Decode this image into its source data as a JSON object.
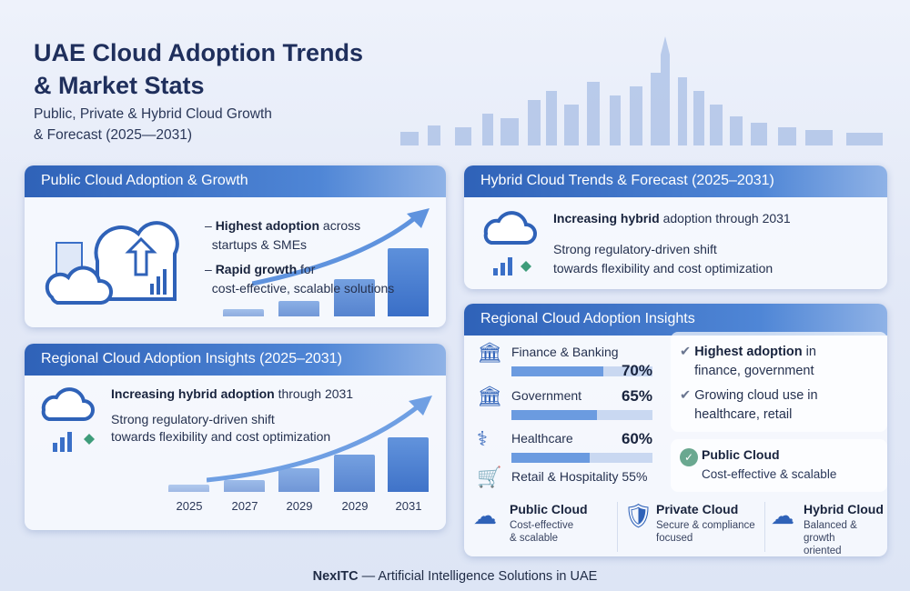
{
  "header": {
    "title_line1": "UAE Cloud Adoption Trends",
    "title_line2": "& Market Stats",
    "subtitle_line1": "Public, Private & Hybrid Cloud Growth",
    "subtitle_line2": "& Forecast (2025—2031)"
  },
  "public_card": {
    "title": "Public Cloud Adoption & Growth",
    "b1_bold": "Highest adoption",
    "b1_rest": " across",
    "b1_line2": "startups & SMEs",
    "b2_bold": "Rapid growth",
    "b2_rest": " for",
    "b2_line2": "cost-effective, scalable solutions",
    "bar_levels": [
      7,
      20,
      53,
      100
    ]
  },
  "hybrid_card": {
    "title": "Hybrid Cloud Trends & Forecast (2025–2031)",
    "l1_bold": "Increasing hybrid",
    "l1_rest": " adoption through 2031",
    "l2": "Strong regulatory-driven shift",
    "l3": "towards flexibility and cost optimization"
  },
  "regional_left": {
    "title": "Regional Cloud Adoption Insights (2025–2031)",
    "l1_bold": "Increasing hybrid adoption",
    "l1_rest": " through 2031",
    "l2": "Strong regulatory-driven shift",
    "l3": "towards flexibility and cost optimization",
    "years": [
      "2025",
      "2027",
      "2029",
      "2029",
      "2031"
    ],
    "bar_levels": [
      13,
      22,
      43,
      68,
      100
    ]
  },
  "regional_right": {
    "title": "Regional Cloud Adoption Insights",
    "sectors": [
      {
        "label": "Finance & Banking",
        "value": "70%",
        "pct": 70,
        "icon": "bank-icon"
      },
      {
        "label": "Government",
        "value": "65%",
        "pct": 65,
        "icon": "bank-icon"
      },
      {
        "label": "Healthcare",
        "value": "60%",
        "pct": 60,
        "icon": "stethoscope-icon"
      },
      {
        "label": "Retail & Hospitality 55%",
        "pct": 55,
        "icon": "cart-icon"
      }
    ],
    "insights": [
      {
        "bold": "Highest adoption",
        "rest": " in",
        "line2": "finance, government"
      },
      {
        "bold": "",
        "rest": "Growing cloud use in",
        "line2": "healthcare, retail"
      }
    ],
    "public_box": {
      "title": "Public Cloud",
      "desc": "Cost-effective & scalable"
    },
    "types": [
      {
        "title": "Public Cloud",
        "d1": "Cost-effective",
        "d2": "& scalable"
      },
      {
        "title": "Private Cloud",
        "d1": "Secure & compliance",
        "d2": "focused"
      },
      {
        "title": "Hybrid Cloud",
        "d1": "Balanced & growth",
        "d2": "oriented"
      }
    ]
  },
  "footer": {
    "brand": "NexITC",
    "rest": " — Artificial Intelligence Solutions in UAE"
  },
  "colors": {
    "header_blue": "#3a6fc7",
    "title_navy": "#1f2f5c",
    "accent_green": "#3e9c7a"
  }
}
